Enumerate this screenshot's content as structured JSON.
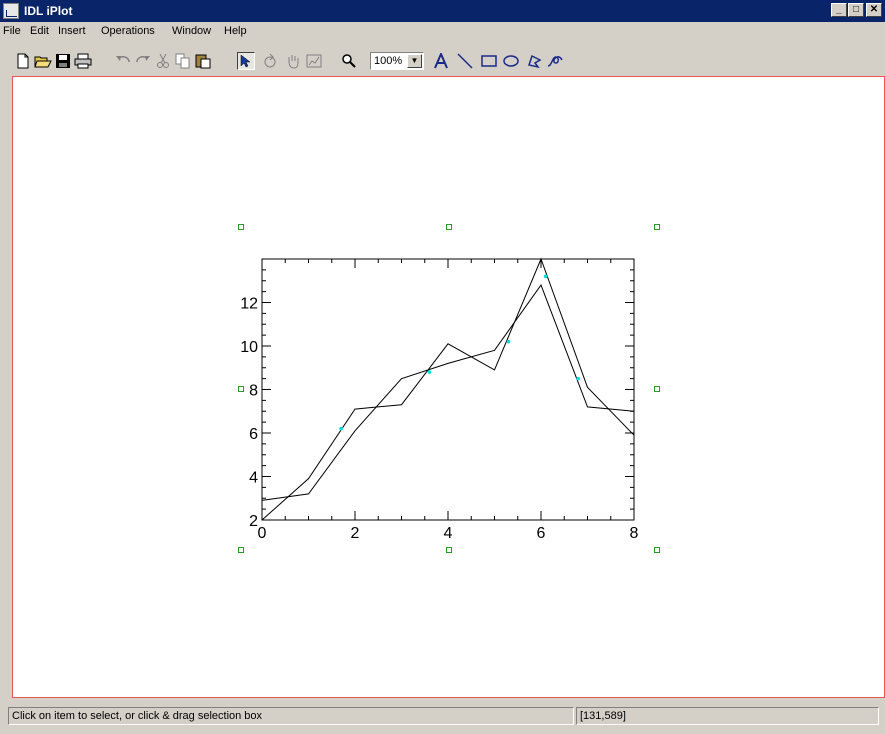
{
  "window": {
    "title": "IDL iPlot"
  },
  "menu": [
    "File",
    "Edit",
    "Insert",
    "Operations",
    "Window",
    "Help"
  ],
  "toolbar": {
    "zoom": "100%",
    "tools": [
      "new-file-icon",
      "open-folder-icon",
      "save-disk-icon",
      "print-icon",
      "undo-icon",
      "redo-icon",
      "cut-icon",
      "copy-icon",
      "paste-icon",
      "select-arrow-icon",
      "rotate-icon",
      "pan-hand-icon",
      "data-range-icon",
      "zoom-magnifier-icon",
      "text-tool-icon",
      "line-tool-icon",
      "rectangle-tool-icon",
      "ellipse-tool-icon",
      "polygon-tool-icon",
      "freehand-tool-icon"
    ]
  },
  "status": {
    "message": "Click on item to select, or click & drag selection box",
    "coords": "[131,589]"
  },
  "chart_data": {
    "type": "line",
    "x_ticks": [
      0,
      2,
      4,
      6,
      8
    ],
    "y_ticks": [
      2,
      4,
      6,
      8,
      10,
      12
    ],
    "xlim": [
      0,
      8
    ],
    "ylim": [
      2,
      14
    ],
    "series": [
      {
        "x": [
          0,
          1,
          2,
          3,
          4,
          5,
          6,
          7,
          8
        ],
        "y": [
          2.0,
          3.9,
          7.1,
          7.3,
          10.1,
          8.9,
          14.0,
          8.1,
          5.9
        ]
      },
      {
        "x": [
          0,
          1,
          2,
          3,
          4,
          5,
          6,
          7,
          8
        ],
        "y": [
          2.9,
          3.2,
          6.1,
          8.5,
          9.2,
          9.8,
          12.8,
          7.2,
          7.0
        ]
      }
    ],
    "selection_marker_color": "#00e0e0",
    "selected_points": [
      [
        1.7,
        6.2
      ],
      [
        3.6,
        8.8
      ],
      [
        5.3,
        10.2
      ],
      [
        6.1,
        13.2
      ],
      [
        6.8,
        8.5
      ]
    ],
    "axis_color": "#000000",
    "handle_color": "#2a9a2a"
  }
}
